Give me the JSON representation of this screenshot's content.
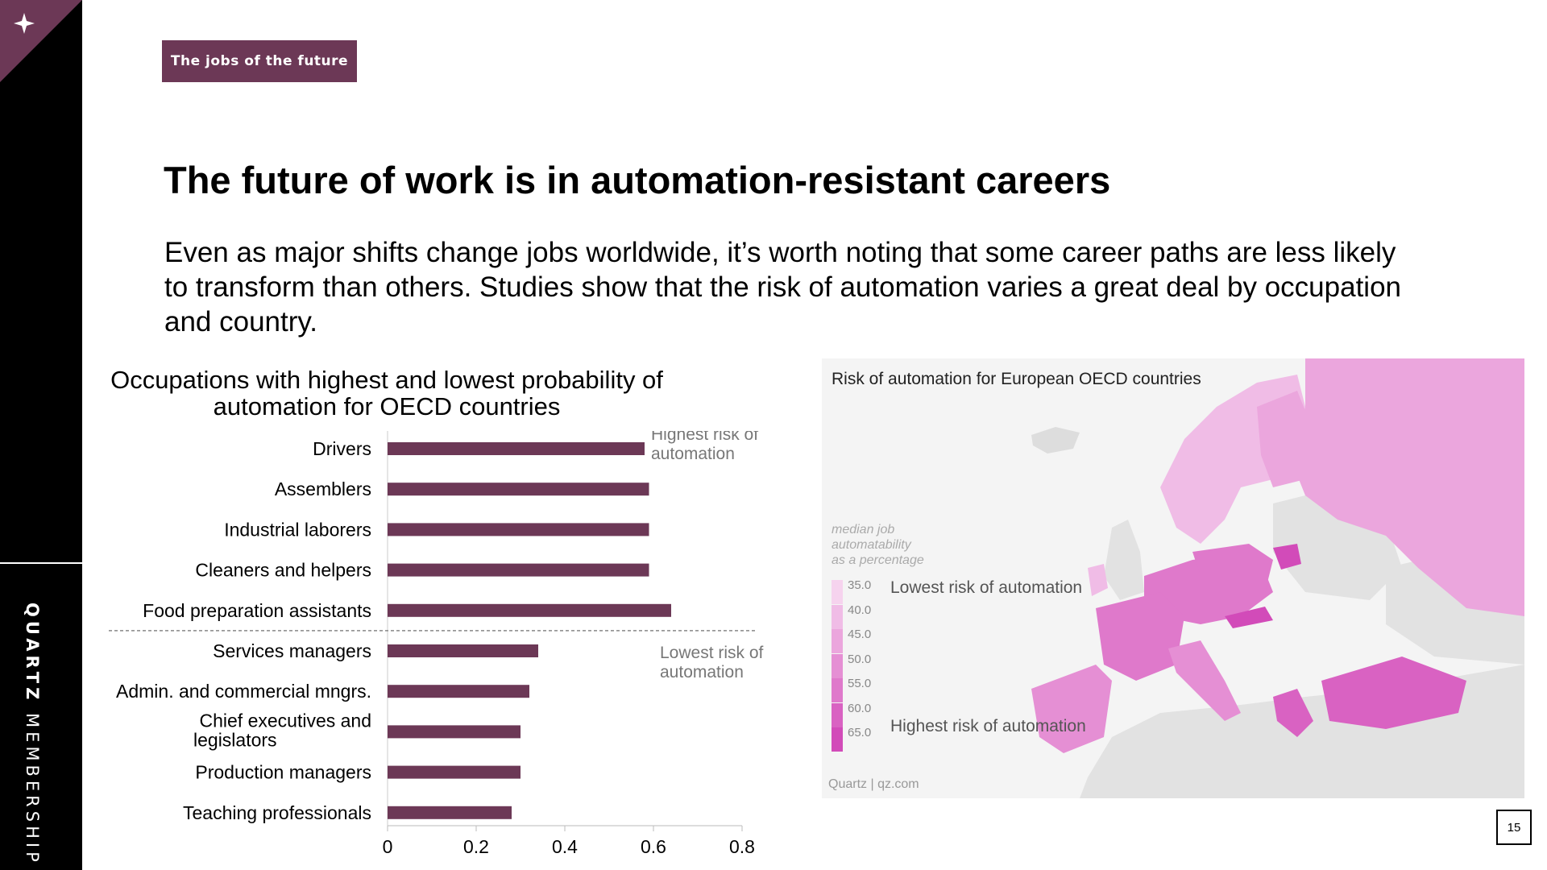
{
  "sidebar": {
    "brand_bold": "QUARTZ",
    "brand_light": "MEMBERSHIP"
  },
  "tag": "The jobs of the future",
  "title": "The future of work is in automation-resistant careers",
  "body": "Even as major shifts change jobs worldwide, it’s worth noting that some career paths are less likely to transform than others. Studies show that the risk of automation varies a great deal by occupation and country.",
  "chart_data": {
    "type": "bar",
    "orientation": "horizontal",
    "title": "Occupations with highest and lowest probability of automation for OECD countries",
    "categories": [
      "Drivers",
      "Assemblers",
      "Industrial laborers",
      "Cleaners and helpers",
      "Food preparation assistants",
      "Services managers",
      "Admin. and commercial mngrs.",
      "Chief executives and legislators",
      "Production managers",
      "Teaching professionals"
    ],
    "values": [
      0.58,
      0.59,
      0.59,
      0.59,
      0.64,
      0.34,
      0.32,
      0.3,
      0.3,
      0.28
    ],
    "xlim": [
      0,
      0.8
    ],
    "xticks": [
      "0",
      "0.2",
      "0.4",
      "0.6",
      "0.8"
    ],
    "bar_color": "#6c3856",
    "annotations": [
      "Highest risk of automation",
      "Lowest risk of automation"
    ],
    "divider": "dashed line between Food preparation assistants and Services managers"
  },
  "map": {
    "title": "Risk of automation for European OECD countries",
    "legend_caption": [
      "median job",
      "automatability",
      "as a percentage"
    ],
    "legend_values": [
      "35.0",
      "40.0",
      "45.0",
      "50.0",
      "55.0",
      "60.0",
      "65.0"
    ],
    "legend_colors": [
      "#f6d3ee",
      "#f0bce6",
      "#eba6dd",
      "#e58fd4",
      "#df79cb",
      "#d962c2",
      "#d24bb9"
    ],
    "legend_low": "Lowest risk of automation",
    "legend_high": "Highest risk of automation",
    "source": "Quartz | qz.com"
  },
  "page_number": "15"
}
